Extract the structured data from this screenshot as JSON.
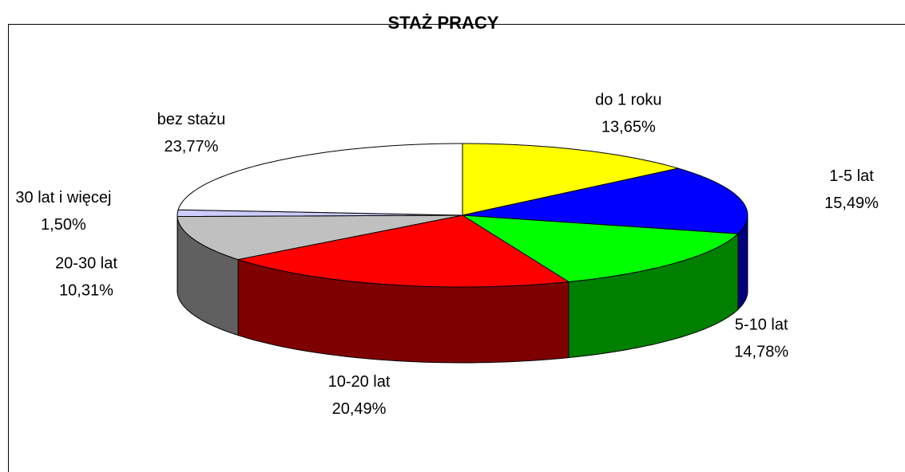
{
  "chart_data": {
    "type": "pie",
    "title": "STAŻ PRACY",
    "categories": [
      "do 1 roku",
      "1-5 lat",
      "5-10 lat",
      "10-20 lat",
      "20-30 lat",
      "30 lat i więcej",
      "bez stażu"
    ],
    "values": [
      13.65,
      15.49,
      14.78,
      20.49,
      10.31,
      1.5,
      23.77
    ],
    "value_labels": [
      "13,65%",
      "15,49%",
      "14,78%",
      "20,49%",
      "10,31%",
      "1,50%",
      "23,77%"
    ],
    "colors": [
      "#ffff00",
      "#0000ff",
      "#00ff00",
      "#ff0000",
      "#c0c0c0",
      "#ccccff",
      "#ffffff"
    ]
  }
}
